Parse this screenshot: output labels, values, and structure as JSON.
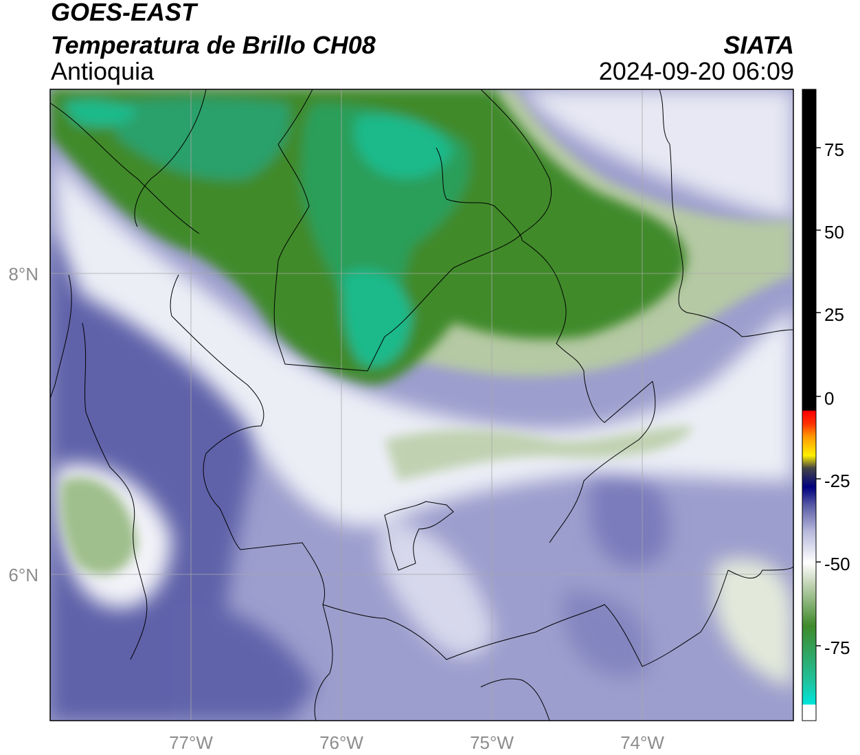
{
  "header": {
    "satellite": "GOES-EAST",
    "product": "Temperatura de Brillo CH08",
    "region": "Antioquia",
    "organization": "SIATA",
    "datetime": "2024-09-20 06:09"
  },
  "map": {
    "latitude_labels": [
      "8°N",
      "6°N"
    ],
    "longitude_labels": [
      "77°W",
      "76°W",
      "75°W",
      "74°W"
    ],
    "gridlines": true,
    "colors": {
      "cloud_cold": "#1fb98a",
      "cloud_green": "#3f8a2a",
      "cloud_light": "#dfe7d2",
      "clear_light": "#d4d5ea",
      "clear_mid": "#8f91c4",
      "clear_dark": "#5b5ea6",
      "boundaries": "#000000"
    }
  },
  "colorbar": {
    "tick_labels": [
      "75",
      "50",
      "25",
      "0",
      "-25",
      "-50",
      "-75"
    ],
    "units_range": [
      -95,
      90
    ]
  }
}
